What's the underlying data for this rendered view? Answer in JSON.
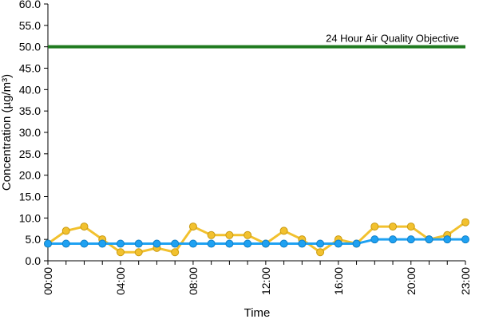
{
  "chart_data": {
    "type": "line",
    "title": "",
    "xlabel": "Time",
    "ylabel": "Concentration (µg/m³)",
    "x": [
      "00:00",
      "01:00",
      "02:00",
      "03:00",
      "04:00",
      "05:00",
      "06:00",
      "07:00",
      "08:00",
      "09:00",
      "10:00",
      "11:00",
      "12:00",
      "13:00",
      "14:00",
      "15:00",
      "16:00",
      "17:00",
      "18:00",
      "19:00",
      "20:00",
      "21:00",
      "22:00",
      "23:00"
    ],
    "x_tick_labels": [
      "00:00",
      "04:00",
      "08:00",
      "12:00",
      "16:00",
      "20:00",
      "23:00"
    ],
    "y_tick_labels": [
      "0.0",
      "5.0",
      "10.0",
      "15.0",
      "20.0",
      "25.0",
      "30.0",
      "35.0",
      "40.0",
      "45.0",
      "50.0",
      "55.0",
      "60.0"
    ],
    "ylim": [
      0,
      60
    ],
    "grid": false,
    "legend": "none",
    "series": [
      {
        "color": "#f2c12e",
        "values": [
          4,
          7,
          8,
          5,
          2,
          2,
          3,
          2,
          8,
          6,
          6,
          6,
          4,
          7,
          5,
          2,
          5,
          4,
          8,
          8,
          8,
          5,
          6,
          9
        ]
      },
      {
        "color": "#1ea1f2",
        "values": [
          4,
          4,
          4,
          4,
          4,
          4,
          4,
          4,
          4,
          4,
          4,
          4,
          4,
          4,
          4,
          4,
          4,
          4,
          5,
          5,
          5,
          5,
          5,
          5
        ]
      }
    ],
    "reference_line": {
      "value": 50,
      "label": "24 Hour Air Quality Objective",
      "color": "#1f7a1f"
    }
  }
}
